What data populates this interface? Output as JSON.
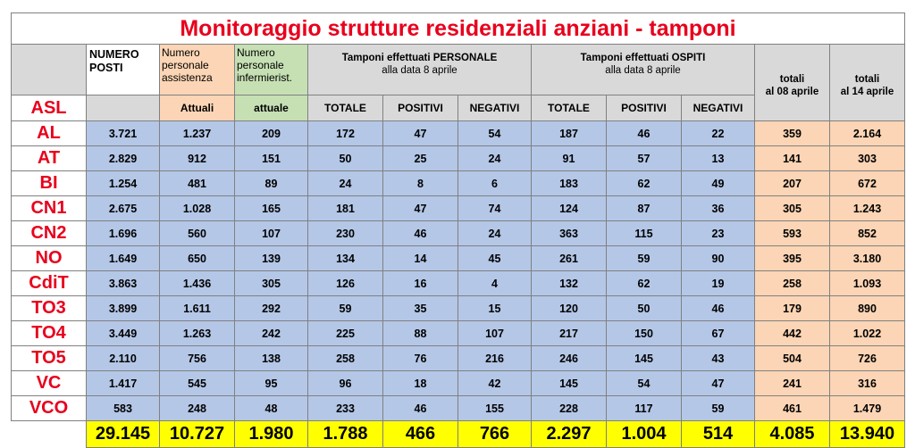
{
  "title": "Monitoraggio strutture residenziali anziani - tamponi",
  "headers": {
    "numero_posti": [
      "NUMERO",
      "POSTI"
    ],
    "personale_assistenza": [
      "Numero",
      "personale",
      "assistenza"
    ],
    "personale_infermieristico": [
      "Numero",
      "personale",
      "infermierist."
    ],
    "tamponi_personale": [
      "Tamponi effettuati PERSONALE",
      "alla data 8 aprile"
    ],
    "tamponi_ospiti": [
      "Tamponi effettuati OSPITI",
      "alla data 8 aprile"
    ],
    "totali_08": [
      "totali",
      "al 08 aprile"
    ],
    "totali_14": [
      "totali",
      "al 14 aprile"
    ],
    "asl": "ASL",
    "attuali": "Attuali",
    "attuale": "attuale",
    "totale": "TOTALE",
    "positivi": "POSITIVI",
    "negativi": "NEGATIVI"
  },
  "rows": [
    {
      "asl": "AL",
      "posti": "3.721",
      "assistenza": "1.237",
      "infermieri": "209",
      "p_tot": "172",
      "p_pos": "47",
      "p_neg": "54",
      "o_tot": "187",
      "o_pos": "46",
      "o_neg": "22",
      "tot08": "359",
      "tot14": "2.164"
    },
    {
      "asl": "AT",
      "posti": "2.829",
      "assistenza": "912",
      "infermieri": "151",
      "p_tot": "50",
      "p_pos": "25",
      "p_neg": "24",
      "o_tot": "91",
      "o_pos": "57",
      "o_neg": "13",
      "tot08": "141",
      "tot14": "303"
    },
    {
      "asl": "BI",
      "posti": "1.254",
      "assistenza": "481",
      "infermieri": "89",
      "p_tot": "24",
      "p_pos": "8",
      "p_neg": "6",
      "o_tot": "183",
      "o_pos": "62",
      "o_neg": "49",
      "tot08": "207",
      "tot14": "672"
    },
    {
      "asl": "CN1",
      "posti": "2.675",
      "assistenza": "1.028",
      "infermieri": "165",
      "p_tot": "181",
      "p_pos": "47",
      "p_neg": "74",
      "o_tot": "124",
      "o_pos": "87",
      "o_neg": "36",
      "tot08": "305",
      "tot14": "1.243"
    },
    {
      "asl": "CN2",
      "posti": "1.696",
      "assistenza": "560",
      "infermieri": "107",
      "p_tot": "230",
      "p_pos": "46",
      "p_neg": "24",
      "o_tot": "363",
      "o_pos": "115",
      "o_neg": "23",
      "tot08": "593",
      "tot14": "852"
    },
    {
      "asl": "NO",
      "posti": "1.649",
      "assistenza": "650",
      "infermieri": "139",
      "p_tot": "134",
      "p_pos": "14",
      "p_neg": "45",
      "o_tot": "261",
      "o_pos": "59",
      "o_neg": "90",
      "tot08": "395",
      "tot14": "3.180"
    },
    {
      "asl": "CdiT",
      "posti": "3.863",
      "assistenza": "1.436",
      "infermieri": "305",
      "p_tot": "126",
      "p_pos": "16",
      "p_neg": "4",
      "o_tot": "132",
      "o_pos": "62",
      "o_neg": "19",
      "tot08": "258",
      "tot14": "1.093"
    },
    {
      "asl": "TO3",
      "posti": "3.899",
      "assistenza": "1.611",
      "infermieri": "292",
      "p_tot": "59",
      "p_pos": "35",
      "p_neg": "15",
      "o_tot": "120",
      "o_pos": "50",
      "o_neg": "46",
      "tot08": "179",
      "tot14": "890"
    },
    {
      "asl": "TO4",
      "posti": "3.449",
      "assistenza": "1.263",
      "infermieri": "242",
      "p_tot": "225",
      "p_pos": "88",
      "p_neg": "107",
      "o_tot": "217",
      "o_pos": "150",
      "o_neg": "67",
      "tot08": "442",
      "tot14": "1.022"
    },
    {
      "asl": "TO5",
      "posti": "2.110",
      "assistenza": "756",
      "infermieri": "138",
      "p_tot": "258",
      "p_pos": "76",
      "p_neg": "216",
      "o_tot": "246",
      "o_pos": "145",
      "o_neg": "43",
      "tot08": "504",
      "tot14": "726"
    },
    {
      "asl": "VC",
      "posti": "1.417",
      "assistenza": "545",
      "infermieri": "95",
      "p_tot": "96",
      "p_pos": "18",
      "p_neg": "42",
      "o_tot": "145",
      "o_pos": "54",
      "o_neg": "47",
      "tot08": "241",
      "tot14": "316"
    },
    {
      "asl": "VCO",
      "posti": "583",
      "assistenza": "248",
      "infermieri": "48",
      "p_tot": "233",
      "p_pos": "46",
      "p_neg": "155",
      "o_tot": "228",
      "o_pos": "117",
      "o_neg": "59",
      "tot08": "461",
      "tot14": "1.479"
    }
  ],
  "totals": {
    "posti": "29.145",
    "assistenza": "10.727",
    "infermieri": "1.980",
    "p_tot": "1.788",
    "p_pos": "466",
    "p_neg": "766",
    "o_tot": "2.297",
    "o_pos": "1.004",
    "o_neg": "514",
    "tot08": "4.085",
    "tot14": "13.940"
  },
  "colors": {
    "title": "#e8001c",
    "header_grey": "#d9d9d9",
    "header_orange": "#fbd5b5",
    "header_green": "#c6e0b4",
    "data_blue": "#b4c7e7",
    "totals_yellow": "#ffff00"
  }
}
